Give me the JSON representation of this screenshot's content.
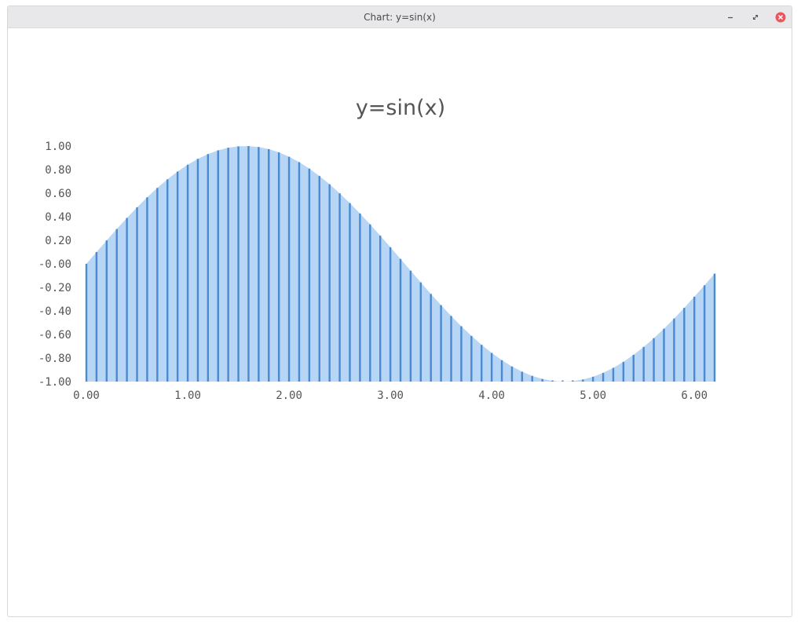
{
  "window": {
    "title": "Chart: y=sin(x)"
  },
  "chart_data": {
    "type": "bar",
    "title": "y=sin(x)",
    "xlabel": "",
    "ylabel": "",
    "x_start": 0,
    "x_step": 0.1,
    "x_count": 63,
    "y_function": "sin(x)",
    "xlim": [
      0,
      6.2
    ],
    "ylim": [
      -1,
      1
    ],
    "xticks": [
      "0.00",
      "1.00",
      "2.00",
      "3.00",
      "4.00",
      "5.00",
      "6.00"
    ],
    "yticks": [
      "1.00",
      "0.80",
      "0.60",
      "0.40",
      "0.20",
      "-0.00",
      "-0.20",
      "-0.40",
      "-0.60",
      "-0.80",
      "-1.00"
    ],
    "baseline": -1,
    "fill_color": "#b7d5f4",
    "bar_color": "#4a8ad0",
    "grid": false,
    "legend": "none"
  }
}
